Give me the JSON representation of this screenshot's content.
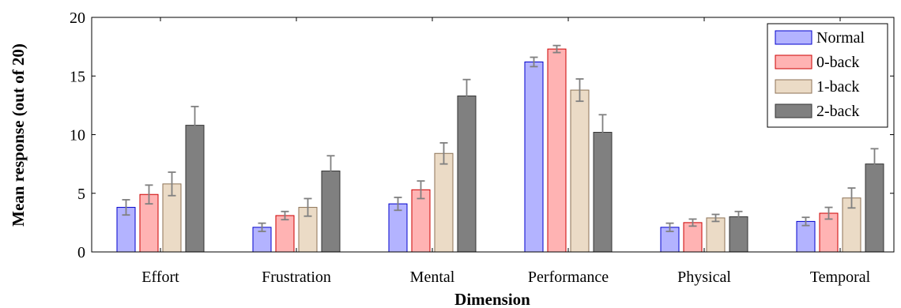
{
  "chart_data": {
    "type": "bar",
    "title": "",
    "xlabel": "Dimension",
    "ylabel": "Mean response (out of 20)",
    "ylim": [
      0,
      20
    ],
    "yticks": [
      0,
      5,
      10,
      15,
      20
    ],
    "grid": false,
    "legend_position": "top-right",
    "categories": [
      "Effort",
      "Frustration",
      "Mental",
      "Performance",
      "Physical",
      "Temporal"
    ],
    "series": [
      {
        "name": "Normal",
        "fill": "#b3b3ff",
        "stroke": "#0000cc",
        "values": [
          3.8,
          2.1,
          4.1,
          16.2,
          2.1,
          2.6
        ],
        "errors": [
          0.65,
          0.35,
          0.55,
          0.4,
          0.35,
          0.35
        ]
      },
      {
        "name": "0-back",
        "fill": "#ffb3b3",
        "stroke": "#cc0000",
        "values": [
          4.9,
          3.1,
          5.3,
          17.3,
          2.5,
          3.3
        ],
        "errors": [
          0.8,
          0.35,
          0.75,
          0.3,
          0.3,
          0.5
        ]
      },
      {
        "name": "1-back",
        "fill": "#ebdbc6",
        "stroke": "#8c7256",
        "values": [
          5.8,
          3.8,
          8.4,
          13.8,
          2.9,
          4.6
        ],
        "errors": [
          1.0,
          0.75,
          0.9,
          0.95,
          0.3,
          0.85
        ]
      },
      {
        "name": "2-back",
        "fill": "#808080",
        "stroke": "#333333",
        "values": [
          10.8,
          6.9,
          13.3,
          10.2,
          3.0,
          7.5
        ],
        "errors": [
          1.6,
          1.3,
          1.4,
          1.5,
          0.45,
          1.3
        ]
      }
    ]
  }
}
